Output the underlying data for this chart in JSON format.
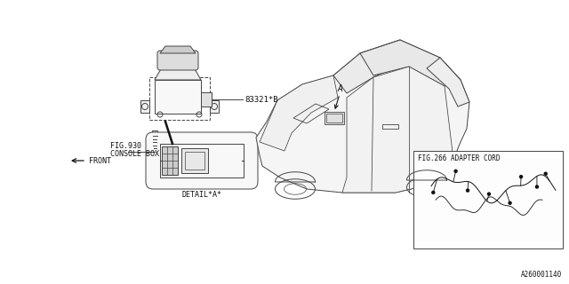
{
  "bg_color": "#ffffff",
  "line_color": "#444444",
  "dark_color": "#111111",
  "part_label": "83321*B",
  "fig_label_console_1": "FIG.930",
  "fig_label_console_2": "CONSOLE BOX",
  "fig_label_adapter": "FIG.266 ADAPTER CORD",
  "detail_label": "DETAIL*A*",
  "front_label": "FRONT",
  "callout_A": "A",
  "doc_number": "A260001140",
  "label_fontsize": 6.0
}
